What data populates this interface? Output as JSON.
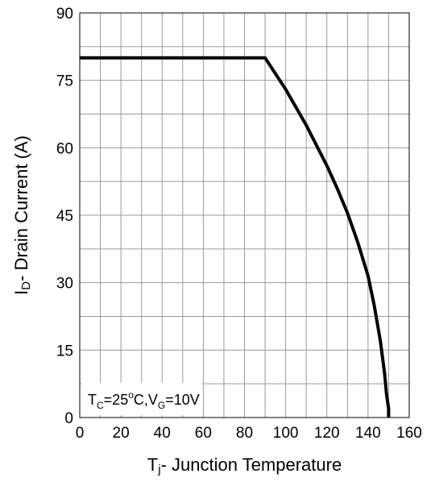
{
  "chart_data": {
    "type": "line",
    "title": "",
    "xlabel": {
      "main": "T",
      "sub": "j",
      "rest": "- Junction Temperature"
    },
    "ylabel": {
      "main": "I",
      "sub": "D",
      "rest": "- Drain Current (A)"
    },
    "xlim": [
      0,
      160
    ],
    "ylim": [
      0,
      90
    ],
    "x_major_ticks": [
      0,
      20,
      40,
      60,
      80,
      100,
      120,
      140,
      160
    ],
    "x_tick_labels": [
      "0",
      "20",
      "40",
      "60",
      "80",
      "100",
      "120",
      "140",
      "160"
    ],
    "y_major_ticks": [
      0,
      15,
      30,
      45,
      60,
      75,
      90
    ],
    "y_tick_labels": [
      "0",
      "15",
      "30",
      "45",
      "60",
      "75",
      "90"
    ],
    "x_grid_step": 10,
    "y_grid_step": 7.5,
    "grid": true,
    "legend": "none",
    "annotation": {
      "t": "T",
      "t_sub": "C",
      "eq1": "=25",
      "deg": "o",
      "c": "C,V",
      "v_sub": "G",
      "eq2": "=10V"
    },
    "series": [
      {
        "x": [
          0,
          90,
          100,
          110,
          120,
          125,
          130,
          135,
          140,
          143,
          146,
          148,
          149,
          150,
          150
        ],
        "y": [
          80,
          80,
          73,
          65,
          56,
          51,
          45.5,
          39,
          31.5,
          25,
          17,
          10,
          5,
          2,
          0
        ]
      }
    ]
  }
}
